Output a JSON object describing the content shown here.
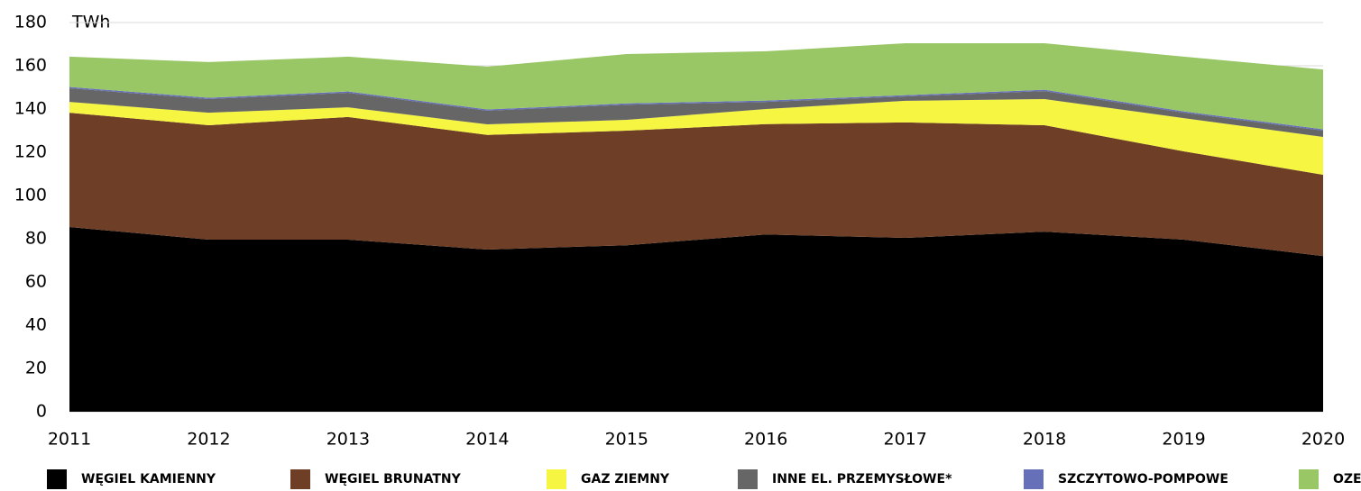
{
  "chart_data": {
    "type": "stacked_area",
    "y_label": "TWh",
    "x": [
      2011,
      2012,
      2013,
      2014,
      2015,
      2016,
      2017,
      2018,
      2019,
      2020
    ],
    "xlim": [
      2011,
      2020
    ],
    "xticks": [
      2011,
      2012,
      2013,
      2014,
      2015,
      2016,
      2017,
      2018,
      2019,
      2020
    ],
    "ylim": [
      0,
      180
    ],
    "yticks": [
      0,
      20,
      40,
      60,
      80,
      100,
      120,
      140,
      160,
      180
    ],
    "grid": true,
    "legend": "bottom",
    "series": [
      {
        "name": "WĘGIEL KAMIENNY",
        "color": "#000000",
        "values": [
          85.4,
          79.6,
          79.6,
          75,
          77,
          82,
          80.4,
          83.3,
          79.6,
          72
        ]
      },
      {
        "name": "WĘGIEL BRUNATNY",
        "color": "#6e3f26",
        "values": [
          52.9,
          52.9,
          56.7,
          53,
          53,
          51,
          53.4,
          49.2,
          40.8,
          37.6
        ]
      },
      {
        "name": "GAZ ZIEMNY",
        "color": "#f5f542",
        "values": [
          5,
          5.8,
          4.5,
          4.9,
          5,
          7,
          10,
          12.1,
          15.4,
          17.5
        ]
      },
      {
        "name": "INNE EL. PRZEMYSŁOWE*",
        "color": "#666666",
        "values": [
          6.3,
          6.3,
          6.7,
          6.3,
          7,
          3.3,
          2,
          3.7,
          2.5,
          2.9
        ]
      },
      {
        "name": "SZCZYTOWO-POMPOWE",
        "color": "#6670b8",
        "values": [
          0.6,
          0.6,
          0.6,
          0.6,
          0.6,
          0.6,
          0.6,
          0.6,
          0.6,
          0.6
        ]
      },
      {
        "name": "OZE",
        "color": "#99c766",
        "values": [
          14,
          16.5,
          16.1,
          19.8,
          22.8,
          22.8,
          24,
          21.5,
          25.3,
          27.7
        ]
      }
    ]
  }
}
